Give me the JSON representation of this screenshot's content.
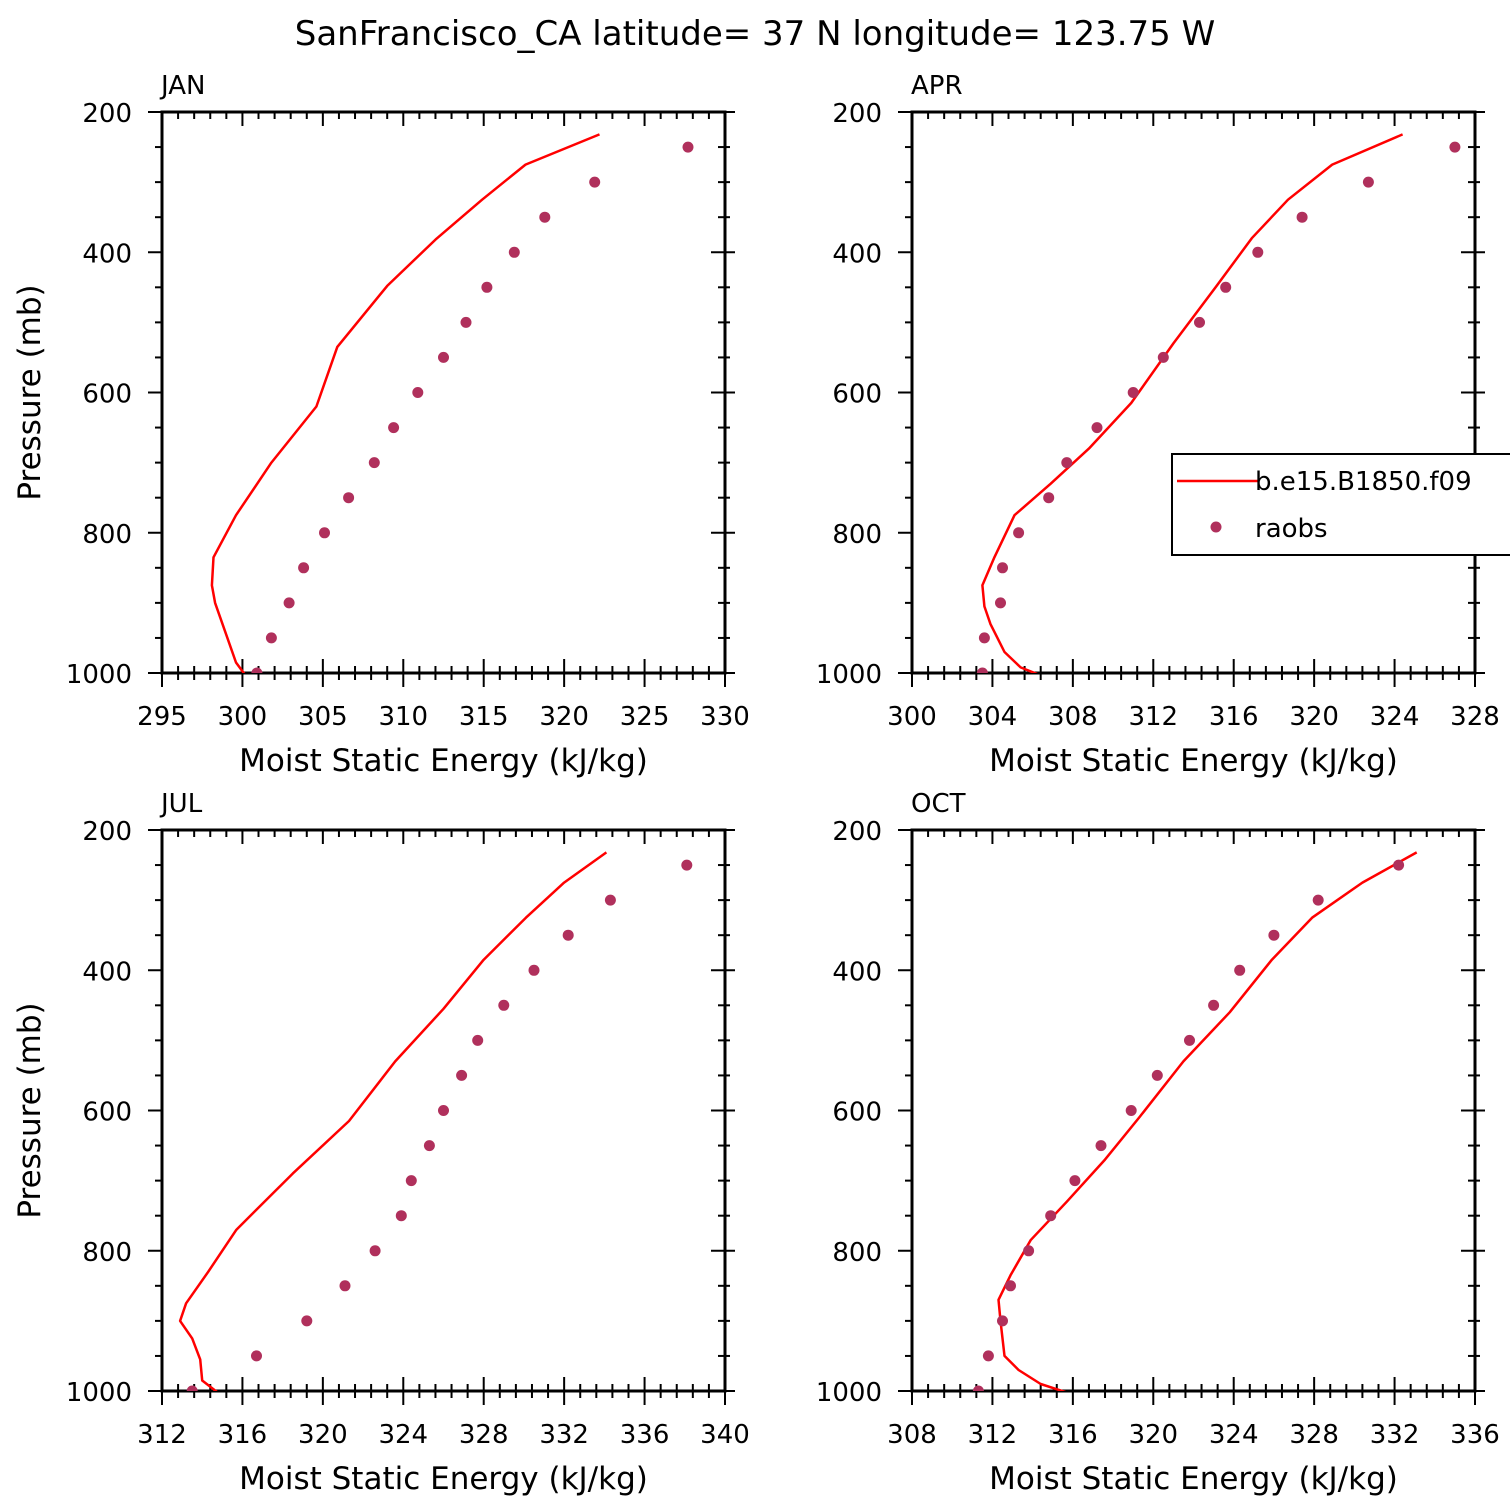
{
  "title": "SanFrancisco_CA  latitude= 37 N longitude= 123.75 W",
  "colors": {
    "model_line": "#ff0000",
    "obs_marker": "#b0305c",
    "axes": "#000000"
  },
  "legend": {
    "entries": [
      {
        "label": "b.e15.B1850.f09",
        "style": "line"
      },
      {
        "label": "raobs",
        "style": "marker"
      }
    ]
  },
  "chart_data": [
    {
      "type": "line",
      "panel": "JAN",
      "xlabel": "Moist Static Energy (kJ/kg)",
      "ylabel": "Pressure (mb)",
      "xlim": [
        295,
        330
      ],
      "ylim": [
        200,
        1000
      ],
      "y_inverted": true,
      "xticks": [
        295,
        300,
        305,
        310,
        315,
        320,
        325,
        330
      ],
      "yticks": [
        200,
        400,
        600,
        800,
        1000
      ],
      "series": [
        {
          "name": "b.e15.B1850.f09",
          "style": "line",
          "x": [
            322.2,
            317.6,
            314.9,
            312.0,
            309.0,
            305.9,
            304.6,
            301.8,
            299.6,
            298.2,
            298.1,
            298.3,
            299.6,
            300.4
          ],
          "y": [
            232,
            275,
            325,
            382,
            448,
            535,
            620,
            700,
            775,
            835,
            875,
            900,
            985,
            1010
          ]
        },
        {
          "name": "raobs",
          "style": "marker",
          "x": [
            327.7,
            321.9,
            318.8,
            316.9,
            315.2,
            313.9,
            312.5,
            310.9,
            309.4,
            308.2,
            306.6,
            305.1,
            303.8,
            302.9,
            301.8,
            300.9
          ],
          "y": [
            250,
            300,
            350,
            400,
            450,
            500,
            550,
            600,
            650,
            700,
            750,
            800,
            850,
            900,
            950,
            1000
          ]
        }
      ]
    },
    {
      "type": "line",
      "panel": "APR",
      "xlabel": "Moist Static Energy (kJ/kg)",
      "ylabel": "",
      "xlim": [
        300,
        328
      ],
      "ylim": [
        200,
        1000
      ],
      "y_inverted": true,
      "xticks": [
        300,
        304,
        308,
        312,
        316,
        320,
        324,
        328
      ],
      "yticks": [
        200,
        400,
        600,
        800,
        1000
      ],
      "series": [
        {
          "name": "b.e15.B1850.f09",
          "style": "line",
          "x": [
            324.4,
            320.9,
            318.7,
            316.9,
            315.1,
            313.0,
            310.9,
            308.8,
            306.9,
            305.1,
            304.1,
            303.5,
            303.6,
            303.9,
            304.6,
            305.4,
            306.8
          ],
          "y": [
            232,
            275,
            325,
            380,
            450,
            530,
            615,
            680,
            730,
            775,
            835,
            875,
            905,
            930,
            970,
            992,
            1008
          ]
        },
        {
          "name": "raobs",
          "style": "marker",
          "x": [
            327.0,
            322.7,
            319.4,
            317.2,
            315.6,
            314.3,
            312.5,
            311.0,
            309.2,
            307.7,
            306.8,
            305.3,
            304.5,
            304.4,
            303.6,
            303.5
          ],
          "y": [
            250,
            300,
            350,
            400,
            450,
            500,
            550,
            600,
            650,
            700,
            750,
            800,
            850,
            900,
            950,
            1000
          ]
        }
      ]
    },
    {
      "type": "line",
      "panel": "JUL",
      "xlabel": "Moist Static Energy (kJ/kg)",
      "ylabel": "Pressure (mb)",
      "xlim": [
        312,
        340
      ],
      "ylim": [
        200,
        1000
      ],
      "y_inverted": true,
      "xticks": [
        312,
        316,
        320,
        324,
        328,
        332,
        336,
        340
      ],
      "yticks": [
        200,
        400,
        600,
        800,
        1000
      ],
      "series": [
        {
          "name": "b.e15.B1850.f09",
          "style": "line",
          "x": [
            334.1,
            332.0,
            330.1,
            328.0,
            326.0,
            323.6,
            321.3,
            318.5,
            315.7,
            314.3,
            313.2,
            312.9,
            313.5,
            313.9,
            314.0,
            314.9
          ],
          "y": [
            232,
            275,
            325,
            385,
            455,
            530,
            615,
            690,
            770,
            830,
            875,
            900,
            925,
            955,
            985,
            1005
          ]
        },
        {
          "name": "raobs",
          "style": "marker",
          "x": [
            338.1,
            334.3,
            332.2,
            330.5,
            329.0,
            327.7,
            326.9,
            326.0,
            325.3,
            324.4,
            323.9,
            322.6,
            321.1,
            319.2,
            316.7,
            313.5
          ],
          "y": [
            250,
            300,
            350,
            400,
            450,
            500,
            550,
            600,
            650,
            700,
            750,
            800,
            850,
            900,
            950,
            1000
          ]
        }
      ]
    },
    {
      "type": "line",
      "panel": "OCT",
      "xlabel": "Moist Static Energy (kJ/kg)",
      "ylabel": "",
      "xlim": [
        308,
        336
      ],
      "ylim": [
        200,
        1000
      ],
      "y_inverted": true,
      "xticks": [
        308,
        312,
        316,
        320,
        324,
        328,
        332,
        336
      ],
      "yticks": [
        200,
        400,
        600,
        800,
        1000
      ],
      "series": [
        {
          "name": "b.e15.B1850.f09",
          "style": "line",
          "x": [
            333.1,
            330.4,
            327.9,
            325.9,
            323.8,
            321.5,
            319.3,
            317.6,
            315.7,
            313.9,
            312.9,
            312.3,
            312.4,
            312.6,
            313.3,
            314.4,
            316.0
          ],
          "y": [
            232,
            275,
            325,
            385,
            460,
            530,
            610,
            670,
            730,
            785,
            835,
            870,
            900,
            950,
            970,
            990,
            1005
          ]
        },
        {
          "name": "raobs",
          "style": "marker",
          "x": [
            332.2,
            328.2,
            326.0,
            324.3,
            323.0,
            321.8,
            320.2,
            318.9,
            317.4,
            316.1,
            314.9,
            313.8,
            312.9,
            312.5,
            311.8,
            311.3
          ],
          "y": [
            250,
            300,
            350,
            400,
            450,
            500,
            550,
            600,
            650,
            700,
            750,
            800,
            850,
            900,
            950,
            1000
          ]
        }
      ]
    }
  ]
}
